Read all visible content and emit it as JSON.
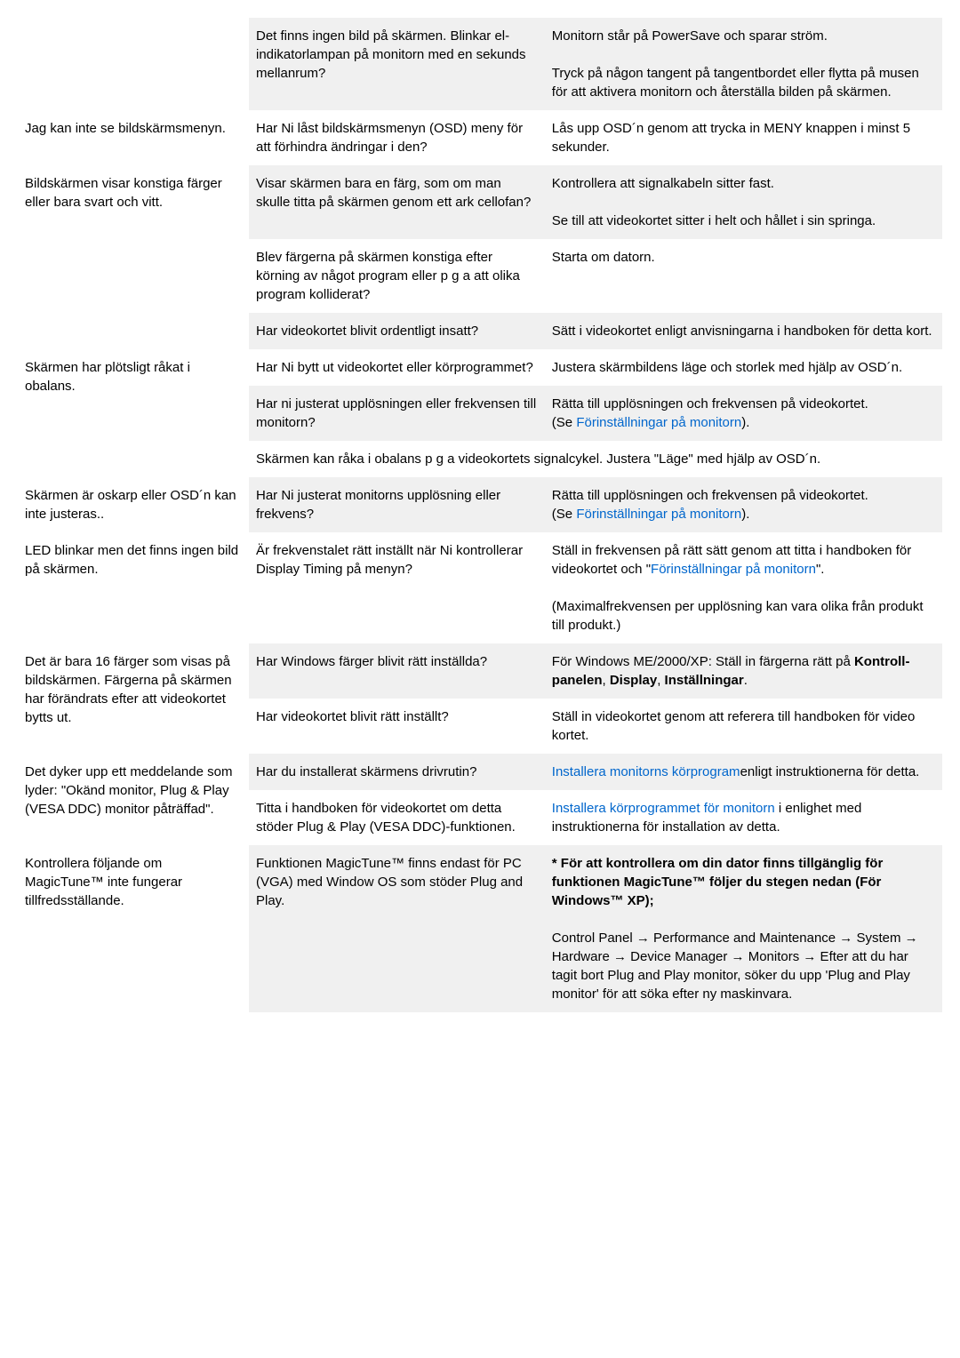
{
  "colors": {
    "background": "#ffffff",
    "altRow": "#f0f0f0",
    "text": "#000000",
    "link": "#0066cc"
  },
  "typography": {
    "fontFamily": "Arial",
    "fontSize": 15,
    "lineHeight": 1.4
  },
  "rows": [
    {
      "c1": "",
      "c2": "Det finns ingen bild på skärmen. Blinkar el-indikatorlampan på monitorn med en sekunds mellanrum?",
      "c3a": "Monitorn står på PowerSave och sparar ström.",
      "c3b": "Tryck på någon tangent på tangentbordet eller flytta på musen för att aktivera monitorn och återställa bilden på skärmen."
    },
    {
      "c1": "Jag kan inte se bildskärmsmenyn.",
      "c2": "Har Ni låst bildskärmsmenyn (OSD) meny för att förhindra ändringar i den?",
      "c3": "Lås upp OSD´n genom att trycka in MENY knappen i minst 5 sekunder."
    },
    {
      "c1": "Bildskärmen visar konstiga färger eller bara svart och vitt.",
      "c2": "Visar skärmen bara en färg, som om man skulle titta på skärmen genom ett ark cellofan?",
      "c3a": "Kontrollera att signalkabeln sitter fast.",
      "c3b": "Se till att videokortet sitter i helt och hållet i sin springa."
    },
    {
      "c2": "Blev färgerna på skärmen konstiga efter körning av något program eller p g a att olika program kolliderat?",
      "c3": "Starta om datorn."
    },
    {
      "c2": "Har videokortet blivit ordentligt insatt?",
      "c3": "Sätt i videokortet enligt anvisningarna i handboken för detta kort."
    },
    {
      "c1": "Skärmen har plötsligt råkat i obalans.",
      "c2": "Har Ni bytt ut videokortet eller körprogrammet?",
      "c3": "Justera skärmbildens läge och storlek med hjälp av OSD´n."
    },
    {
      "c2": "Har ni justerat upplösningen eller frekvensen till monitorn?",
      "c3a": "Rätta till upplösningen och frekvensen på videokortet.",
      "c3b": "(Se ",
      "c3link": "Förinställningar på monitorn",
      "c3c": ")."
    },
    {
      "merged": "Skärmen kan råka i obalans p g a videokortets signalcykel. Justera \"Läge\" med hjälp av OSD´n."
    },
    {
      "c1": "Skärmen är oskarp eller OSD´n kan inte justeras..",
      "c2": "Har Ni justerat monitorns upplösning eller frekvens?",
      "c3a": "Rätta till upplösningen och frekvensen på videokortet.",
      "c3b": "(Se ",
      "c3link": "Förinställningar på monitorn",
      "c3c": ")."
    },
    {
      "c1": "LED blinkar men det finns ingen bild på skärmen.",
      "c2": "Är frekvenstalet rätt inställt när Ni kontrollerar Display Timing på menyn?",
      "c3a": "Ställ in frekvensen på rätt sätt genom att titta i handboken för videokortet och",
      "c3q1": "\"",
      "c3link": "Förinställningar på monitorn",
      "c3q2": "\".",
      "c3b": "(Maximalfrekvensen per upplösning kan vara olika från produkt till produkt.)"
    },
    {
      "c1": "Det är bara 16 färger som visas på bildskärmen. Färgerna på skärmen har förändrats efter att videokortet bytts ut.",
      "c2": "Har Windows färger blivit rätt inställda?",
      "c3a": "För Windows ME/2000/XP: Ställ in färgerna rätt på ",
      "c3bold1": "Kontroll-panelen",
      "c3mid1": ", ",
      "c3bold2": "Display",
      "c3mid2": ", ",
      "c3bold3": "Inställningar",
      "c3end": "."
    },
    {
      "c2": "Har videokortet blivit rätt inställt?",
      "c3": "Ställ in videokortet genom att referera till handboken för video kortet."
    },
    {
      "c1": "Det dyker upp ett meddelande som lyder: \"Okänd monitor, Plug & Play (VESA DDC) monitor påträffad\".",
      "c2": "Har du installerat skärmens drivrutin?",
      "c3link": "Installera monitorns körprogram",
      "c3after": "enligt instruktionerna för detta."
    },
    {
      "c2": "Titta i handboken för videokortet om detta stöder Plug & Play (VESA DDC)-funktionen.",
      "c3link": "Installera körprogrammet för monitorn",
      "c3after": " i enlighet med instruktionerna för installation av detta."
    },
    {
      "c1": "Kontrollera följande om MagicTune™ inte fungerar tillfredsställande.",
      "c2": "Funktionen MagicTune™ finns endast för PC (VGA) med Window OS som stöder Plug and Play.",
      "c3bold1": "* För att kontrollera om din dator finns tillgänglig för funktionen MagicTune™ följer du stegen nedan (För Windows™ XP);",
      "c3body": "Control Panel → Performance and Maintenance → System → Hardware → Device Manager → Monitors → Efter att du har tagit bort Plug and Play monitor, söker du upp 'Plug and Play monitor' för att söka efter ny maskinvara."
    }
  ]
}
